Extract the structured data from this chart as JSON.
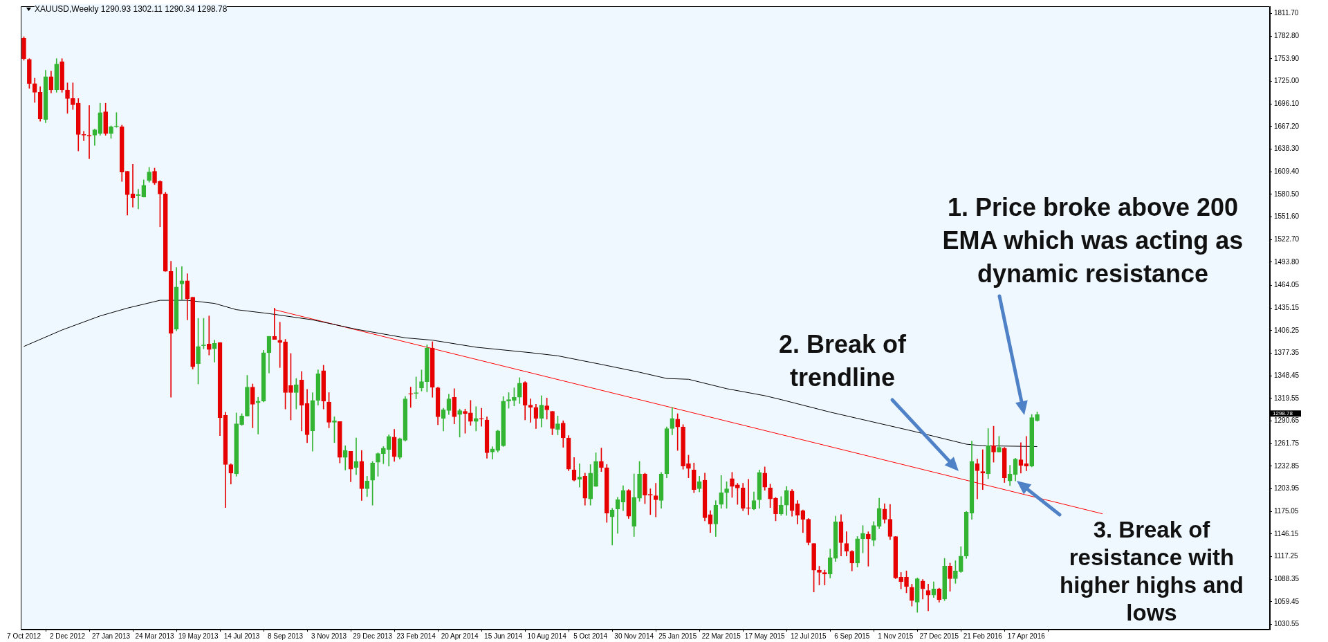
{
  "chart_data": {
    "type": "candlestick",
    "title": "XAUUSD,Weekly 1290.93 1302.11 1290.34 1298.78",
    "x": [
      "2012-10-07",
      "2012-10-14",
      "2012-10-21",
      "2012-10-28",
      "2012-11-04",
      "2012-11-11",
      "2012-11-18",
      "2012-11-25",
      "2012-12-02",
      "2012-12-09",
      "2012-12-16",
      "2012-12-23",
      "2012-12-30",
      "2013-01-06",
      "2013-01-13",
      "2013-01-20",
      "2013-01-27",
      "2013-02-03",
      "2013-02-10",
      "2013-02-17",
      "2013-02-24",
      "2013-03-03",
      "2013-03-10",
      "2013-03-17",
      "2013-03-24",
      "2013-03-31",
      "2013-04-07",
      "2013-04-14",
      "2013-04-21",
      "2013-04-28",
      "2013-05-05",
      "2013-05-12",
      "2013-05-19",
      "2013-05-26",
      "2013-06-02",
      "2013-06-09",
      "2013-06-16",
      "2013-06-23",
      "2013-06-30",
      "2013-07-07",
      "2013-07-14",
      "2013-07-21",
      "2013-07-28",
      "2013-08-04",
      "2013-08-11",
      "2013-08-18",
      "2013-08-25",
      "2013-09-01",
      "2013-09-08",
      "2013-09-15",
      "2013-09-22",
      "2013-09-29",
      "2013-10-06",
      "2013-10-13",
      "2013-10-20",
      "2013-10-27",
      "2013-11-03",
      "2013-11-10",
      "2013-11-17",
      "2013-11-24",
      "2013-12-01",
      "2013-12-08",
      "2013-12-15",
      "2013-12-22",
      "2013-12-29",
      "2014-01-05",
      "2014-01-12",
      "2014-01-19",
      "2014-01-26",
      "2014-02-02",
      "2014-02-09",
      "2014-02-16",
      "2014-02-23",
      "2014-03-02",
      "2014-03-09",
      "2014-03-16",
      "2014-03-23",
      "2014-03-30",
      "2014-04-06",
      "2014-04-13",
      "2014-04-20",
      "2014-04-27",
      "2014-05-04",
      "2014-05-11",
      "2014-05-18",
      "2014-05-25",
      "2014-06-01",
      "2014-06-08",
      "2014-06-15",
      "2014-06-22",
      "2014-06-29",
      "2014-07-06",
      "2014-07-13",
      "2014-07-20",
      "2014-07-27",
      "2014-08-03",
      "2014-08-10",
      "2014-08-17",
      "2014-08-24",
      "2014-08-31",
      "2014-09-07",
      "2014-09-14",
      "2014-09-21",
      "2014-09-28",
      "2014-10-05",
      "2014-10-12",
      "2014-10-19",
      "2014-10-26",
      "2014-11-02",
      "2014-11-09",
      "2014-11-16",
      "2014-11-23",
      "2014-11-30",
      "2014-12-07",
      "2014-12-14",
      "2014-12-21",
      "2014-12-28",
      "2015-01-04",
      "2015-01-11",
      "2015-01-18",
      "2015-01-25",
      "2015-02-01",
      "2015-02-08",
      "2015-02-15",
      "2015-02-22",
      "2015-03-01",
      "2015-03-08",
      "2015-03-15",
      "2015-03-22",
      "2015-03-29",
      "2015-04-05",
      "2015-04-12",
      "2015-04-19",
      "2015-04-26",
      "2015-05-03",
      "2015-05-10",
      "2015-05-17",
      "2015-05-24",
      "2015-05-31",
      "2015-06-07",
      "2015-06-14",
      "2015-06-21",
      "2015-06-28",
      "2015-07-05",
      "2015-07-12",
      "2015-07-19",
      "2015-07-26",
      "2015-08-02",
      "2015-08-09",
      "2015-08-16",
      "2015-08-23",
      "2015-08-30",
      "2015-09-06",
      "2015-09-13",
      "2015-09-20",
      "2015-09-27",
      "2015-10-04",
      "2015-10-11",
      "2015-10-18",
      "2015-10-25",
      "2015-11-01",
      "2015-11-08",
      "2015-11-15",
      "2015-11-22",
      "2015-11-29",
      "2015-12-06",
      "2015-12-13",
      "2015-12-20",
      "2015-12-27",
      "2016-01-03",
      "2016-01-10",
      "2016-01-17",
      "2016-01-24",
      "2016-01-31",
      "2016-02-07",
      "2016-02-14",
      "2016-02-21",
      "2016-02-28",
      "2016-03-06",
      "2016-03-13",
      "2016-03-20",
      "2016-03-27",
      "2016-04-03",
      "2016-04-10",
      "2016-04-17",
      "2016-04-24",
      "2016-05-01"
    ],
    "ohlc": [
      [
        1780,
        1782,
        1752,
        1754
      ],
      [
        1753,
        1754,
        1716,
        1722
      ],
      [
        1722,
        1729,
        1698,
        1711
      ],
      [
        1711,
        1718,
        1674,
        1677
      ],
      [
        1676,
        1739,
        1672,
        1731
      ],
      [
        1731,
        1738,
        1710,
        1714
      ],
      [
        1714,
        1754,
        1711,
        1747
      ],
      [
        1750,
        1754,
        1711,
        1714
      ],
      [
        1714,
        1723,
        1684,
        1703
      ],
      [
        1703,
        1723,
        1689,
        1695
      ],
      [
        1697,
        1703,
        1636,
        1657
      ],
      [
        1657,
        1661,
        1649,
        1656
      ],
      [
        1656,
        1694,
        1626,
        1655
      ],
      [
        1656,
        1664,
        1643,
        1663
      ],
      [
        1658,
        1697,
        1656,
        1685
      ],
      [
        1686,
        1697,
        1656,
        1658
      ],
      [
        1658,
        1668,
        1652,
        1667
      ],
      [
        1667,
        1685,
        1666,
        1668
      ],
      [
        1667,
        1669,
        1597,
        1609
      ],
      [
        1610,
        1610,
        1554,
        1580
      ],
      [
        1581,
        1619,
        1564,
        1576
      ],
      [
        1579,
        1587,
        1562,
        1580
      ],
      [
        1577,
        1599,
        1577,
        1592
      ],
      [
        1598,
        1615,
        1596,
        1609
      ],
      [
        1610,
        1614,
        1593,
        1595
      ],
      [
        1597,
        1598,
        1539,
        1581
      ],
      [
        1581,
        1583,
        1482,
        1482
      ],
      [
        1482,
        1495,
        1321,
        1403
      ],
      [
        1408,
        1487,
        1406,
        1462
      ],
      [
        1466,
        1488,
        1446,
        1470
      ],
      [
        1470,
        1479,
        1420,
        1447
      ],
      [
        1449,
        1449,
        1357,
        1360
      ],
      [
        1364,
        1422,
        1338,
        1386
      ],
      [
        1387,
        1422,
        1383,
        1388
      ],
      [
        1389,
        1425,
        1375,
        1382
      ],
      [
        1383,
        1394,
        1366,
        1390
      ],
      [
        1391,
        1391,
        1272,
        1295
      ],
      [
        1298,
        1302,
        1180,
        1235
      ],
      [
        1235,
        1236,
        1210,
        1224
      ],
      [
        1223,
        1301,
        1220,
        1287
      ],
      [
        1286,
        1300,
        1285,
        1297
      ],
      [
        1297,
        1349,
        1297,
        1334
      ],
      [
        1334,
        1338,
        1282,
        1312
      ],
      [
        1314,
        1321,
        1274,
        1316
      ],
      [
        1316,
        1381,
        1315,
        1378
      ],
      [
        1378,
        1399,
        1352,
        1399
      ],
      [
        1399,
        1435,
        1395,
        1395
      ],
      [
        1394,
        1417,
        1359,
        1391
      ],
      [
        1392,
        1395,
        1306,
        1327
      ],
      [
        1336,
        1377,
        1292,
        1327
      ],
      [
        1327,
        1345,
        1306,
        1337
      ],
      [
        1343,
        1354,
        1278,
        1311
      ],
      [
        1313,
        1331,
        1263,
        1273
      ],
      [
        1278,
        1327,
        1252,
        1317
      ],
      [
        1317,
        1356,
        1311,
        1351
      ],
      [
        1355,
        1362,
        1306,
        1316
      ],
      [
        1315,
        1327,
        1282,
        1289
      ],
      [
        1289,
        1296,
        1263,
        1291
      ],
      [
        1290,
        1290,
        1237,
        1244
      ],
      [
        1244,
        1259,
        1228,
        1253
      ],
      [
        1252,
        1252,
        1213,
        1229
      ],
      [
        1231,
        1269,
        1222,
        1239
      ],
      [
        1239,
        1253,
        1189,
        1204
      ],
      [
        1204,
        1220,
        1194,
        1214
      ],
      [
        1215,
        1239,
        1183,
        1237
      ],
      [
        1238,
        1250,
        1220,
        1249
      ],
      [
        1249,
        1258,
        1236,
        1256
      ],
      [
        1254,
        1273,
        1233,
        1271
      ],
      [
        1270,
        1280,
        1239,
        1245
      ],
      [
        1244,
        1269,
        1242,
        1268
      ],
      [
        1266,
        1322,
        1265,
        1319
      ],
      [
        1325,
        1334,
        1308,
        1325
      ],
      [
        1326,
        1347,
        1319,
        1327
      ],
      [
        1333,
        1356,
        1329,
        1341
      ],
      [
        1341,
        1388,
        1328,
        1384
      ],
      [
        1384,
        1392,
        1321,
        1334
      ],
      [
        1333,
        1334,
        1286,
        1296
      ],
      [
        1294,
        1307,
        1278,
        1305
      ],
      [
        1304,
        1325,
        1299,
        1319
      ],
      [
        1321,
        1332,
        1287,
        1296
      ],
      [
        1299,
        1306,
        1270,
        1304
      ],
      [
        1303,
        1306,
        1275,
        1300
      ],
      [
        1301,
        1317,
        1285,
        1290
      ],
      [
        1290,
        1309,
        1278,
        1294
      ],
      [
        1293,
        1307,
        1284,
        1293
      ],
      [
        1292,
        1296,
        1243,
        1250
      ],
      [
        1251,
        1258,
        1242,
        1255
      ],
      [
        1253,
        1279,
        1251,
        1278
      ],
      [
        1259,
        1322,
        1258,
        1316
      ],
      [
        1316,
        1327,
        1307,
        1318
      ],
      [
        1317,
        1333,
        1310,
        1321
      ],
      [
        1321,
        1346,
        1313,
        1339
      ],
      [
        1340,
        1341,
        1292,
        1311
      ],
      [
        1311,
        1319,
        1289,
        1308
      ],
      [
        1308,
        1312,
        1281,
        1294
      ],
      [
        1294,
        1323,
        1283,
        1311
      ],
      [
        1310,
        1320,
        1293,
        1305
      ],
      [
        1303,
        1303,
        1273,
        1281
      ],
      [
        1280,
        1297,
        1273,
        1287
      ],
      [
        1288,
        1291,
        1257,
        1269
      ],
      [
        1269,
        1272,
        1227,
        1229
      ],
      [
        1228,
        1244,
        1214,
        1215
      ],
      [
        1216,
        1236,
        1206,
        1219
      ],
      [
        1220,
        1224,
        1183,
        1192
      ],
      [
        1191,
        1235,
        1183,
        1224
      ],
      [
        1207,
        1250,
        1207,
        1239
      ],
      [
        1239,
        1256,
        1226,
        1231
      ],
      [
        1231,
        1235,
        1161,
        1173
      ],
      [
        1168,
        1179,
        1132,
        1177
      ],
      [
        1178,
        1193,
        1147,
        1190
      ],
      [
        1187,
        1208,
        1176,
        1202
      ],
      [
        1202,
        1203,
        1166,
        1169
      ],
      [
        1156,
        1223,
        1143,
        1193
      ],
      [
        1192,
        1239,
        1188,
        1223
      ],
      [
        1223,
        1224,
        1185,
        1196
      ],
      [
        1196,
        1204,
        1171,
        1196
      ],
      [
        1195,
        1211,
        1168,
        1190
      ],
      [
        1189,
        1225,
        1179,
        1223
      ],
      [
        1223,
        1283,
        1218,
        1281
      ],
      [
        1281,
        1308,
        1273,
        1294
      ],
      [
        1293,
        1300,
        1253,
        1283
      ],
      [
        1283,
        1286,
        1229,
        1233
      ],
      [
        1236,
        1247,
        1218,
        1230
      ],
      [
        1228,
        1237,
        1199,
        1203
      ],
      [
        1204,
        1220,
        1200,
        1213
      ],
      [
        1215,
        1224,
        1163,
        1167
      ],
      [
        1171,
        1176,
        1148,
        1159
      ],
      [
        1159,
        1189,
        1143,
        1183
      ],
      [
        1184,
        1221,
        1179,
        1199
      ],
      [
        1199,
        1213,
        1179,
        1204
      ],
      [
        1217,
        1225,
        1193,
        1207
      ],
      [
        1209,
        1211,
        1184,
        1205
      ],
      [
        1205,
        1211,
        1176,
        1179
      ],
      [
        1179,
        1216,
        1171,
        1179
      ],
      [
        1178,
        1200,
        1177,
        1189
      ],
      [
        1190,
        1228,
        1179,
        1225
      ],
      [
        1224,
        1232,
        1202,
        1206
      ],
      [
        1205,
        1210,
        1180,
        1191
      ],
      [
        1192,
        1193,
        1163,
        1172
      ],
      [
        1172,
        1194,
        1170,
        1183
      ],
      [
        1183,
        1207,
        1170,
        1202
      ],
      [
        1201,
        1203,
        1169,
        1176
      ],
      [
        1185,
        1189,
        1159,
        1170
      ],
      [
        1176,
        1177,
        1148,
        1165
      ],
      [
        1165,
        1166,
        1132,
        1135
      ],
      [
        1134,
        1134,
        1072,
        1100
      ],
      [
        1100,
        1105,
        1081,
        1097
      ],
      [
        1097,
        1100,
        1081,
        1095
      ],
      [
        1095,
        1127,
        1090,
        1116
      ],
      [
        1115,
        1169,
        1111,
        1162
      ],
      [
        1162,
        1171,
        1118,
        1135
      ],
      [
        1134,
        1149,
        1118,
        1124
      ],
      [
        1124,
        1125,
        1099,
        1109
      ],
      [
        1109,
        1143,
        1104,
        1140
      ],
      [
        1140,
        1157,
        1122,
        1147
      ],
      [
        1146,
        1149,
        1105,
        1140
      ],
      [
        1138,
        1162,
        1131,
        1157
      ],
      [
        1156,
        1192,
        1153,
        1179
      ],
      [
        1178,
        1185,
        1160,
        1165
      ],
      [
        1165,
        1184,
        1139,
        1143
      ],
      [
        1143,
        1143,
        1089,
        1090
      ],
      [
        1091,
        1097,
        1076,
        1085
      ],
      [
        1091,
        1099,
        1071,
        1079
      ],
      [
        1078,
        1082,
        1054,
        1061
      ],
      [
        1059,
        1090,
        1046,
        1089
      ],
      [
        1086,
        1088,
        1063,
        1076
      ],
      [
        1074,
        1082,
        1048,
        1068
      ],
      [
        1068,
        1085,
        1065,
        1076
      ],
      [
        1076,
        1077,
        1059,
        1062
      ],
      [
        1063,
        1115,
        1061,
        1105
      ],
      [
        1105,
        1109,
        1073,
        1089
      ],
      [
        1089,
        1112,
        1083,
        1099
      ],
      [
        1098,
        1130,
        1097,
        1118
      ],
      [
        1118,
        1175,
        1115,
        1174
      ],
      [
        1173,
        1265,
        1165,
        1239
      ],
      [
        1236,
        1242,
        1191,
        1227
      ],
      [
        1226,
        1254,
        1203,
        1224
      ],
      [
        1223,
        1281,
        1217,
        1259
      ],
      [
        1259,
        1284,
        1238,
        1251
      ],
      [
        1251,
        1271,
        1251,
        1257
      ],
      [
        1256,
        1257,
        1212,
        1218
      ],
      [
        1214,
        1234,
        1208,
        1223
      ],
      [
        1222,
        1243,
        1214,
        1242
      ],
      [
        1241,
        1263,
        1224,
        1234
      ],
      [
        1236,
        1271,
        1227,
        1233
      ],
      [
        1233,
        1299,
        1232,
        1295
      ],
      [
        1290.93,
        1302.11,
        1290.34,
        1298.78
      ]
    ],
    "colors": [
      "#e60000",
      "#e60000",
      "#e60000",
      "#e60000",
      "#33b533",
      "#e60000",
      "#33b533",
      "#e60000",
      "#e60000",
      "#e60000",
      "#e60000",
      "#e60000",
      "#e60000",
      "#33b533",
      "#33b533",
      "#e60000",
      "#33b533",
      "#33b533",
      "#e60000",
      "#e60000",
      "#e60000",
      "#33b533",
      "#33b533",
      "#33b533",
      "#e60000",
      "#e60000",
      "#e60000",
      "#e60000",
      "#33b533",
      "#33b533",
      "#e60000",
      "#e60000",
      "#33b533",
      "#33b533",
      "#e60000",
      "#33b533",
      "#e60000",
      "#e60000",
      "#e60000",
      "#33b533",
      "#33b533",
      "#33b533",
      "#e60000",
      "#33b533",
      "#33b533",
      "#33b533",
      "#e60000",
      "#e60000",
      "#e60000",
      "#e60000",
      "#33b533",
      "#e60000",
      "#e60000",
      "#33b533",
      "#33b533",
      "#e60000",
      "#e60000",
      "#33b533",
      "#e60000",
      "#33b533",
      "#e60000",
      "#33b533",
      "#e60000",
      "#33b533",
      "#33b533",
      "#33b533",
      "#33b533",
      "#33b533",
      "#e60000",
      "#33b533",
      "#33b533",
      "#e60000",
      "#33b533",
      "#33b533",
      "#33b533",
      "#e60000",
      "#e60000",
      "#33b533",
      "#33b533",
      "#e60000",
      "#33b533",
      "#e60000",
      "#e60000",
      "#33b533",
      "#e60000",
      "#e60000",
      "#33b533",
      "#33b533",
      "#33b533",
      "#33b533",
      "#33b533",
      "#33b533",
      "#e60000",
      "#e60000",
      "#e60000",
      "#33b533",
      "#e60000",
      "#e60000",
      "#33b533",
      "#e60000",
      "#e60000",
      "#e60000",
      "#33b533",
      "#e60000",
      "#33b533",
      "#33b533",
      "#e60000",
      "#e60000",
      "#33b533",
      "#33b533",
      "#33b533",
      "#e60000",
      "#33b533",
      "#33b533",
      "#e60000",
      "#e60000",
      "#e60000",
      "#33b533",
      "#33b533",
      "#33b533",
      "#e60000",
      "#e60000",
      "#e60000",
      "#e60000",
      "#33b533",
      "#e60000",
      "#e60000",
      "#33b533",
      "#33b533",
      "#33b533",
      "#e60000",
      "#e60000",
      "#e60000",
      "#e60000",
      "#33b533",
      "#33b533",
      "#e60000",
      "#e60000",
      "#e60000",
      "#33b533",
      "#33b533",
      "#e60000",
      "#e60000",
      "#e60000",
      "#e60000",
      "#e60000",
      "#e60000",
      "#e60000",
      "#33b533",
      "#33b533",
      "#e60000",
      "#e60000",
      "#e60000",
      "#33b533",
      "#33b533",
      "#e60000",
      "#33b533",
      "#33b533",
      "#e60000",
      "#e60000",
      "#e60000",
      "#e60000",
      "#e60000",
      "#e60000",
      "#33b533",
      "#e60000",
      "#e60000",
      "#33b533",
      "#e60000",
      "#33b533",
      "#e60000",
      "#33b533",
      "#33b533",
      "#33b533",
      "#33b533",
      "#e60000",
      "#e60000",
      "#33b533",
      "#e60000",
      "#33b533",
      "#e60000",
      "#33b533",
      "#33b533",
      "#e60000",
      "#e60000",
      "#33b533",
      "#33b533"
    ],
    "series": [
      {
        "type": "line",
        "color": "#000000",
        "x": [
          "2012-10-07",
          "2012-11-25",
          "2013-01-13",
          "2013-02-17",
          "2013-03-31",
          "2013-05-05",
          "2013-06-09",
          "2013-07-07",
          "2013-08-18",
          "2013-10-13",
          "2013-12-08",
          "2014-02-09",
          "2014-03-16",
          "2014-05-11",
          "2014-07-20",
          "2014-08-24",
          "2014-10-19",
          "2014-12-07",
          "2015-01-11",
          "2015-02-08",
          "2015-03-29",
          "2015-05-17",
          "2015-06-07",
          "2015-08-09",
          "2015-09-13",
          "2015-11-22",
          "2016-01-31",
          "2016-02-21",
          "2016-05-01"
        ],
        "values": [
          1386,
          1407,
          1425,
          1435,
          1445,
          1445,
          1441,
          1433,
          1428,
          1420,
          1408,
          1397,
          1394,
          1385,
          1378,
          1374,
          1363,
          1353,
          1345,
          1344,
          1332,
          1323,
          1318,
          1302,
          1294,
          1278,
          1261,
          1259,
          1258
        ]
      },
      {
        "type": "line",
        "color": "#ff0000",
        "x": [
          "2013-08-25",
          "2016-07-24"
        ],
        "values": [
          1433,
          1172
        ]
      }
    ],
    "xlim": [
      "2012-10-03",
      "2017-02-24"
    ],
    "ylim": [
      1024,
      1821
    ],
    "xticks": [
      {
        "value": "2012-10-07",
        "label": "7 Oct 2012"
      },
      {
        "value": "2012-12-02",
        "label": "2 Dec 2012"
      },
      {
        "value": "2013-01-27",
        "label": "27 Jan 2013"
      },
      {
        "value": "2013-03-24",
        "label": "24 Mar 2013"
      },
      {
        "value": "2013-05-19",
        "label": "19 May 2013"
      },
      {
        "value": "2013-07-14",
        "label": "14 Jul 2013"
      },
      {
        "value": "2013-09-08",
        "label": "8 Sep 2013"
      },
      {
        "value": "2013-11-03",
        "label": "3 Nov 2013"
      },
      {
        "value": "2013-12-29",
        "label": "29 Dec 2013"
      },
      {
        "value": "2014-02-23",
        "label": "23 Feb 2014"
      },
      {
        "value": "2014-04-20",
        "label": "20 Apr 2014"
      },
      {
        "value": "2014-06-15",
        "label": "15 Jun 2014"
      },
      {
        "value": "2014-08-10",
        "label": "10 Aug 2014"
      },
      {
        "value": "2014-10-05",
        "label": "5 Oct 2014"
      },
      {
        "value": "2014-11-30",
        "label": "30 Nov 2014"
      },
      {
        "value": "2015-01-25",
        "label": "25 Jan 2015"
      },
      {
        "value": "2015-03-22",
        "label": "22 Mar 2015"
      },
      {
        "value": "2015-05-17",
        "label": "17 May 2015"
      },
      {
        "value": "2015-07-12",
        "label": "12 Jul 2015"
      },
      {
        "value": "2015-09-06",
        "label": "6 Sep 2015"
      },
      {
        "value": "2015-11-01",
        "label": "1 Nov 2015"
      },
      {
        "value": "2015-12-27",
        "label": "27 Dec 2015"
      },
      {
        "value": "2016-02-21",
        "label": "21 Feb 2016"
      },
      {
        "value": "2016-04-17",
        "label": "17 Apr 2016"
      }
    ],
    "yticks": [
      {
        "value": 1811.7,
        "label": "1811.70"
      },
      {
        "value": 1782.8,
        "label": "1782.80"
      },
      {
        "value": 1753.9,
        "label": "1753.90"
      },
      {
        "value": 1725,
        "label": "1725.00"
      },
      {
        "value": 1696.1,
        "label": "1696.10"
      },
      {
        "value": 1667.2,
        "label": "1667.20"
      },
      {
        "value": 1638.3,
        "label": "1638.30"
      },
      {
        "value": 1609.4,
        "label": "1609.40"
      },
      {
        "value": 1580.5,
        "label": "1580.50"
      },
      {
        "value": 1551.6,
        "label": "1551.60"
      },
      {
        "value": 1522.7,
        "label": "1522.70"
      },
      {
        "value": 1493.8,
        "label": "1493.80"
      },
      {
        "value": 1464.05,
        "label": "1464.05"
      },
      {
        "value": 1435.15,
        "label": "1435.15"
      },
      {
        "value": 1406.25,
        "label": "1406.25"
      },
      {
        "value": 1377.35,
        "label": "1377.35"
      },
      {
        "value": 1348.45,
        "label": "1348.45"
      },
      {
        "value": 1319.55,
        "label": "1319.55"
      },
      {
        "value": 1290.65,
        "label": "1290.65"
      },
      {
        "value": 1261.75,
        "label": "1261.75"
      },
      {
        "value": 1232.85,
        "label": "1232.85"
      },
      {
        "value": 1203.95,
        "label": "1203.95"
      },
      {
        "value": 1175.05,
        "label": "1175.05"
      },
      {
        "value": 1146.15,
        "label": "1146.15"
      },
      {
        "value": 1117.25,
        "label": "1117.25"
      },
      {
        "value": 1088.35,
        "label": "1088.35"
      },
      {
        "value": 1059.45,
        "label": "1059.45"
      },
      {
        "value": 1030.55,
        "label": "1030.55"
      }
    ],
    "annotations": [
      "1. Price broke above 200 EMA which was acting as dynamic resistance",
      "2. Break of trendline",
      "3. Break of resistance with higher highs and lows",
      "1298.78"
    ]
  }
}
